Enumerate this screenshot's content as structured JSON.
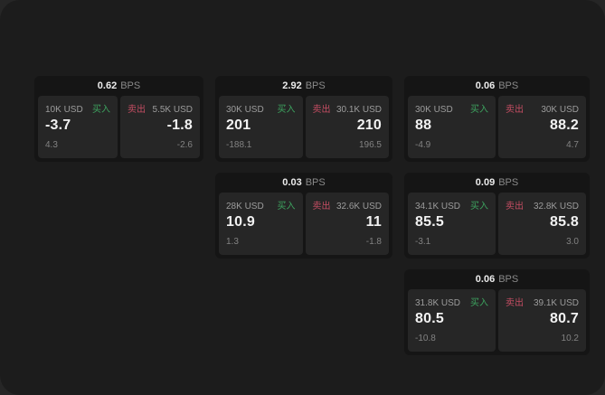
{
  "labels": {
    "bps_unit": "BPS",
    "buy": "买入",
    "sell": "卖出"
  },
  "colors": {
    "buy_green": "#3da35f",
    "sell_red": "#c44d62",
    "window_bg": "#1c1c1c",
    "card_bg": "#151515",
    "panel_bg": "#262626"
  },
  "cards": [
    {
      "bps": "0.62",
      "buy": {
        "amount": "10K USD",
        "price": "-3.7",
        "sub": "4.3"
      },
      "sell": {
        "amount": "5.5K USD",
        "price": "-1.8",
        "sub": "-2.6"
      }
    },
    {
      "bps": "2.92",
      "buy": {
        "amount": "30K USD",
        "price": "201",
        "sub": "-188.1"
      },
      "sell": {
        "amount": "30.1K USD",
        "price": "210",
        "sub": "196.5"
      }
    },
    {
      "bps": "0.06",
      "buy": {
        "amount": "30K USD",
        "price": "88",
        "sub": "-4.9"
      },
      "sell": {
        "amount": "30K USD",
        "price": "88.2",
        "sub": "4.7"
      }
    },
    {
      "bps": "0.03",
      "buy": {
        "amount": "28K USD",
        "price": "10.9",
        "sub": "1.3"
      },
      "sell": {
        "amount": "32.6K USD",
        "price": "11",
        "sub": "-1.8"
      }
    },
    {
      "bps": "0.09",
      "buy": {
        "amount": "34.1K USD",
        "price": "85.5",
        "sub": "-3.1"
      },
      "sell": {
        "amount": "32.8K USD",
        "price": "85.8",
        "sub": "3.0"
      }
    },
    {
      "bps": "0.06",
      "buy": {
        "amount": "31.8K USD",
        "price": "80.5",
        "sub": "-10.8"
      },
      "sell": {
        "amount": "39.1K USD",
        "price": "80.7",
        "sub": "10.2"
      }
    }
  ]
}
